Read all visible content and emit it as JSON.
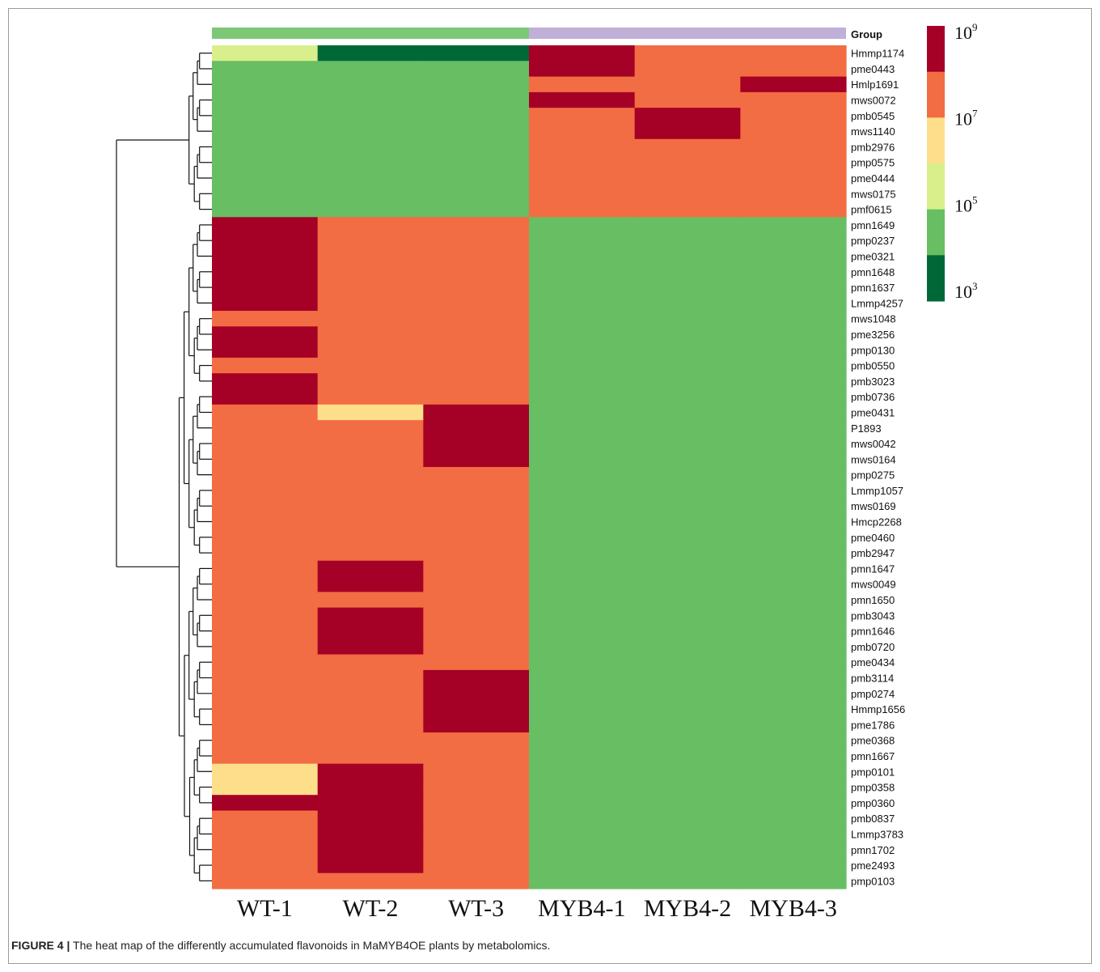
{
  "caption": {
    "label": "FIGURE 4 |",
    "text": "The heat map of the differently accumulated flavonoids in MaMYB4OE plants by metabolomics."
  },
  "chart_data": {
    "type": "heatmap",
    "group_label": "Group",
    "groups": [
      {
        "color": "#7dc876",
        "columns": [
          "WT-1",
          "WT-2",
          "WT-3"
        ]
      },
      {
        "color": "#c0b0d8",
        "columns": [
          "MYB4-1",
          "MYB4-2",
          "MYB4-3"
        ]
      }
    ],
    "columns": [
      "WT-1",
      "WT-2",
      "WT-3",
      "MYB4-1",
      "MYB4-2",
      "MYB4-3"
    ],
    "rows": [
      "Hmmp1174",
      "pme0443",
      "Hmlp1691",
      "mws0072",
      "pmb0545",
      "mws1140",
      "pmb2976",
      "pmp0575",
      "pme0444",
      "mws0175",
      "pmf0615",
      "pmn1649",
      "pmp0237",
      "pme0321",
      "pmn1648",
      "pmn1637",
      "Lmmp4257",
      "mws1048",
      "pme3256",
      "pmp0130",
      "pmb0550",
      "pmb3023",
      "pmb0736",
      "pme0431",
      "P1893",
      "mws0042",
      "mws0164",
      "pmp0275",
      "Lmmp1057",
      "mws0169",
      "Hmcp2268",
      "pme0460",
      "pmb2947",
      "pmn1647",
      "mws0049",
      "pmn1650",
      "pmb3043",
      "pmn1646",
      "pmb0720",
      "pme0434",
      "pmb3114",
      "pmp0274",
      "Hmmp1656",
      "pme1786",
      "pme0368",
      "pmn1667",
      "pmp0101",
      "pmp0358",
      "pmp0360",
      "pmb0837",
      "Lmmp3783",
      "pmn1702",
      "pme2493",
      "pmp0103"
    ],
    "scale": "log10",
    "legend": {
      "ticks": [
        {
          "base": "10",
          "exp": "9"
        },
        {
          "base": "10",
          "exp": "7"
        },
        {
          "base": "10",
          "exp": "5"
        },
        {
          "base": "10",
          "exp": "3"
        }
      ],
      "bins": [
        {
          "min_log10": 8,
          "max_log10": 9,
          "color": "#a50026"
        },
        {
          "min_log10": 7,
          "max_log10": 8,
          "color": "#f26d43"
        },
        {
          "min_log10": 6,
          "max_log10": 7,
          "color": "#fddf8b"
        },
        {
          "min_log10": 5,
          "max_log10": 6,
          "color": "#d9ef8b"
        },
        {
          "min_log10": 4,
          "max_log10": 5,
          "color": "#68be63"
        },
        {
          "min_log10": 3,
          "max_log10": 4,
          "color": "#006837"
        }
      ]
    },
    "values_log10_bin": [
      [
        5,
        3,
        3,
        8,
        7,
        7
      ],
      [
        4,
        4,
        4,
        8,
        7,
        7
      ],
      [
        4,
        4,
        4,
        7,
        7,
        8
      ],
      [
        4,
        4,
        4,
        8,
        7,
        7
      ],
      [
        4,
        4,
        4,
        7,
        8,
        7
      ],
      [
        4,
        4,
        4,
        7,
        8,
        7
      ],
      [
        4,
        4,
        4,
        7,
        7,
        7
      ],
      [
        4,
        4,
        4,
        7,
        7,
        7
      ],
      [
        4,
        4,
        4,
        7,
        7,
        7
      ],
      [
        4,
        4,
        4,
        7,
        7,
        7
      ],
      [
        4,
        4,
        4,
        7,
        7,
        7
      ],
      [
        8,
        7,
        7,
        4,
        4,
        4
      ],
      [
        8,
        7,
        7,
        4,
        4,
        4
      ],
      [
        8,
        7,
        7,
        4,
        4,
        4
      ],
      [
        8,
        7,
        7,
        4,
        4,
        4
      ],
      [
        8,
        7,
        7,
        4,
        4,
        4
      ],
      [
        8,
        7,
        7,
        4,
        4,
        4
      ],
      [
        7,
        7,
        7,
        4,
        4,
        4
      ],
      [
        8,
        7,
        7,
        4,
        4,
        4
      ],
      [
        8,
        7,
        7,
        4,
        4,
        4
      ],
      [
        7,
        7,
        7,
        4,
        4,
        4
      ],
      [
        8,
        7,
        7,
        4,
        4,
        4
      ],
      [
        8,
        7,
        7,
        4,
        4,
        4
      ],
      [
        7,
        6,
        8,
        4,
        4,
        4
      ],
      [
        7,
        7,
        8,
        4,
        4,
        4
      ],
      [
        7,
        7,
        8,
        4,
        4,
        4
      ],
      [
        7,
        7,
        8,
        4,
        4,
        4
      ],
      [
        7,
        7,
        7,
        4,
        4,
        4
      ],
      [
        7,
        7,
        7,
        4,
        4,
        4
      ],
      [
        7,
        7,
        7,
        4,
        4,
        4
      ],
      [
        7,
        7,
        7,
        4,
        4,
        4
      ],
      [
        7,
        7,
        7,
        4,
        4,
        4
      ],
      [
        7,
        7,
        7,
        4,
        4,
        4
      ],
      [
        7,
        8,
        7,
        4,
        4,
        4
      ],
      [
        7,
        8,
        7,
        4,
        4,
        4
      ],
      [
        7,
        7,
        7,
        4,
        4,
        4
      ],
      [
        7,
        8,
        7,
        4,
        4,
        4
      ],
      [
        7,
        8,
        7,
        4,
        4,
        4
      ],
      [
        7,
        8,
        7,
        4,
        4,
        4
      ],
      [
        7,
        7,
        7,
        4,
        4,
        4
      ],
      [
        7,
        7,
        8,
        4,
        4,
        4
      ],
      [
        7,
        7,
        8,
        4,
        4,
        4
      ],
      [
        7,
        7,
        8,
        4,
        4,
        4
      ],
      [
        7,
        7,
        8,
        4,
        4,
        4
      ],
      [
        7,
        7,
        7,
        4,
        4,
        4
      ],
      [
        7,
        7,
        7,
        4,
        4,
        4
      ],
      [
        6,
        8,
        7,
        4,
        4,
        4
      ],
      [
        6,
        8,
        7,
        4,
        4,
        4
      ],
      [
        8,
        8,
        7,
        4,
        4,
        4
      ],
      [
        7,
        8,
        7,
        4,
        4,
        4
      ],
      [
        7,
        8,
        7,
        4,
        4,
        4
      ],
      [
        7,
        8,
        7,
        4,
        4,
        4
      ],
      [
        7,
        8,
        7,
        4,
        4,
        4
      ],
      [
        7,
        7,
        7,
        4,
        4,
        4
      ]
    ],
    "row_dendrogram": true
  }
}
